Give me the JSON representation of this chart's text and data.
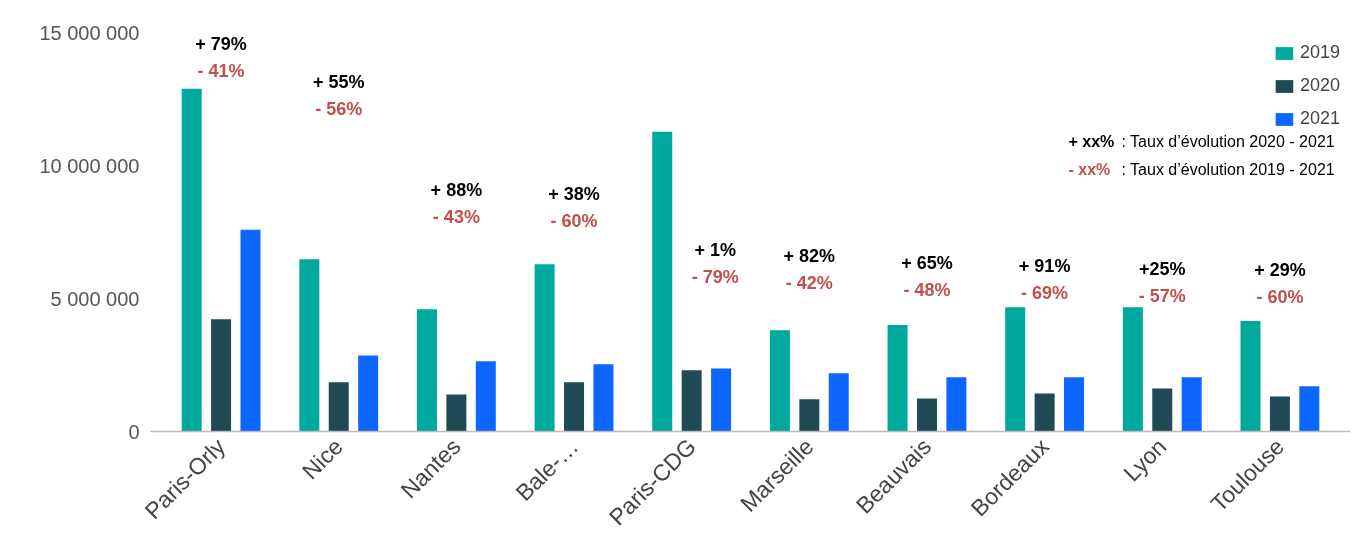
{
  "chart_data": {
    "type": "bar",
    "categories": [
      "Paris-Orly",
      "Nice",
      "Nantes",
      "Bale-…",
      "Paris-CDG",
      "Marseille",
      "Beauvais",
      "Bordeaux",
      "Lyon",
      "Toulouse"
    ],
    "series": [
      {
        "name": "2019",
        "color": "#00a99d",
        "values": [
          12890000,
          6480000,
          4600000,
          6290000,
          11270000,
          3810000,
          4000000,
          4670000,
          4670000,
          4150000
        ]
      },
      {
        "name": "2020",
        "color": "#1f4a56",
        "values": [
          4220000,
          1850000,
          1390000,
          1850000,
          2300000,
          1210000,
          1240000,
          1430000,
          1620000,
          1320000
        ]
      },
      {
        "name": "2021",
        "color": "#0d66ff",
        "values": [
          7580000,
          2860000,
          2640000,
          2530000,
          2370000,
          2190000,
          2040000,
          2040000,
          2040000,
          1700000
        ]
      }
    ],
    "ylim": [
      0,
      15000000
    ],
    "yticks": [
      {
        "value": 0,
        "label": "0"
      },
      {
        "value": 5000000,
        "label": "5 000 000"
      },
      {
        "value": 10000000,
        "label": "10 000 000"
      },
      {
        "value": 15000000,
        "label": "15 000 000"
      }
    ],
    "grid": false,
    "legend": "top right",
    "annotations": [
      "+ 79%",
      "- 41%",
      "+ 55%",
      "- 56%",
      "+ 88%",
      "- 43%",
      "+ 38%",
      "- 60%",
      "+ 1%",
      "- 79%",
      "+ 82%",
      "- 42%",
      "+ 65%",
      "- 48%",
      "+ 91%",
      "- 69%",
      "+25%",
      "- 57%",
      "+ 29%",
      "- 60%",
      "+ xx% : Taux d’évolution 2020 - 2021",
      "- xx% : Taux d’évolution 2019 - 2021"
    ]
  }
}
